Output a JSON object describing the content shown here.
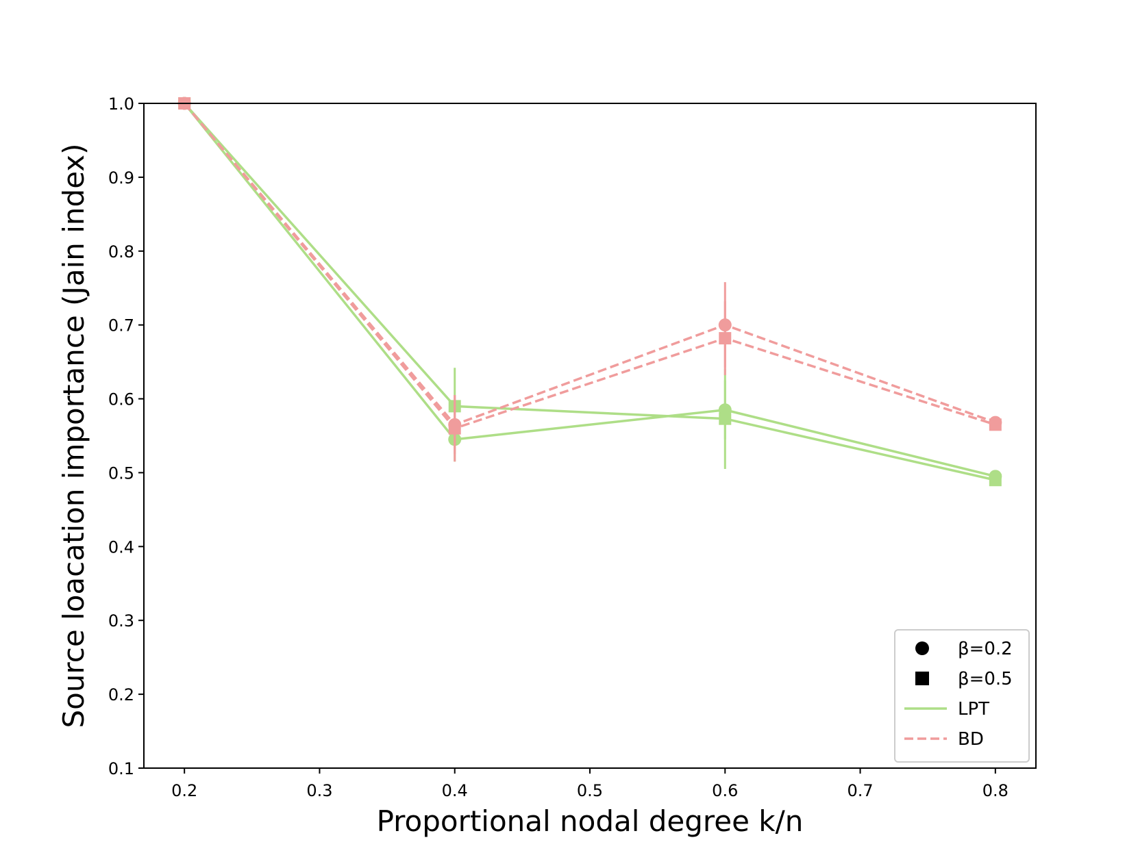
{
  "chart_data": {
    "type": "line",
    "title": "",
    "xlabel": "Proportional nodal degree k/n",
    "ylabel": "Source loacation importance (Jain index)",
    "xlim": [
      0.17,
      0.83
    ],
    "ylim": [
      0.1,
      1.0
    ],
    "xticks": [
      0.2,
      0.3,
      0.4,
      0.5,
      0.6,
      0.7,
      0.8
    ],
    "yticks": [
      0.1,
      0.2,
      0.3,
      0.4,
      0.5,
      0.6,
      0.7,
      0.8,
      0.9,
      1.0
    ],
    "x": [
      0.2,
      0.4,
      0.6,
      0.8
    ],
    "grid": false,
    "legend_position": "lower-right",
    "series": [
      {
        "method": "LPT",
        "beta": "0.2",
        "marker": "circle",
        "line": "solid",
        "color": "#aede87",
        "values": [
          1.0,
          0.545,
          0.585,
          0.495
        ],
        "errors": [
          0,
          0.03,
          0.04,
          0.005
        ]
      },
      {
        "method": "LPT",
        "beta": "0.5",
        "marker": "square",
        "line": "solid",
        "color": "#aede87",
        "values": [
          1.0,
          0.59,
          0.573,
          0.49
        ],
        "errors": [
          0,
          0.052,
          0.068,
          0.005
        ]
      },
      {
        "method": "BD",
        "beta": "0.2",
        "marker": "circle",
        "line": "dashed",
        "color": "#f09c9c",
        "values": [
          1.0,
          0.565,
          0.7,
          0.568
        ],
        "errors": [
          0,
          0.04,
          0.058,
          0.005
        ]
      },
      {
        "method": "BD",
        "beta": "0.5",
        "marker": "square",
        "line": "dashed",
        "color": "#f09c9c",
        "values": [
          1.0,
          0.56,
          0.682,
          0.565
        ],
        "errors": [
          0,
          0.045,
          0.05,
          0.005
        ]
      }
    ],
    "legend": [
      {
        "label": "β=0.2",
        "kind": "marker",
        "marker": "circle",
        "color": "#000000"
      },
      {
        "label": "β=0.5",
        "kind": "marker",
        "marker": "square",
        "color": "#000000"
      },
      {
        "label": "LPT",
        "kind": "line",
        "line": "solid",
        "color": "#aede87"
      },
      {
        "label": "BD",
        "kind": "line",
        "line": "dashed",
        "color": "#f09c9c"
      }
    ]
  }
}
